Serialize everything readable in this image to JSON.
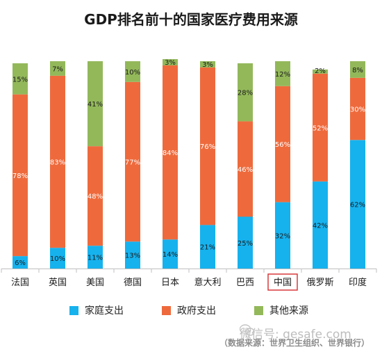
{
  "colors": {
    "family": "#16b2ee",
    "government": "#ee6a3c",
    "other": "#93b85a",
    "highlight_box": "#d9383a"
  },
  "legend": [
    {
      "label": "家庭支出",
      "color": "#16b2ee"
    },
    {
      "label": "政府支出",
      "color": "#ee6a3c"
    },
    {
      "label": "其他来源",
      "color": "#93b85a"
    }
  ],
  "watermark": {
    "text": "微信号: gesafe.com",
    "icon": "wechat-icon"
  },
  "source_note": "（数据来源：世界卫生组织、世界银行）",
  "chart_data": {
    "type": "bar",
    "stacked": true,
    "orientation": "vertical",
    "title": "GDP排名前十的国家医疗费用来源",
    "categories": [
      "法国",
      "英国",
      "美国",
      "德国",
      "日本",
      "意大利",
      "巴西",
      "中国",
      "俄罗斯",
      "印度"
    ],
    "highlighted_category": "中国",
    "series": [
      {
        "name": "家庭支出",
        "color": "#16b2ee",
        "values": [
          6,
          10,
          11,
          13,
          14,
          21,
          25,
          32,
          42,
          62
        ]
      },
      {
        "name": "政府支出",
        "color": "#ee6a3c",
        "values": [
          78,
          83,
          48,
          77,
          84,
          76,
          46,
          56,
          52,
          30
        ]
      },
      {
        "name": "其他来源",
        "color": "#93b85a",
        "values": [
          15,
          7,
          41,
          10,
          3,
          3,
          28,
          12,
          2,
          8
        ]
      }
    ],
    "ylim": [
      0,
      100
    ],
    "y_axis_visible": false,
    "grid": false,
    "legend_position": "bottom"
  }
}
